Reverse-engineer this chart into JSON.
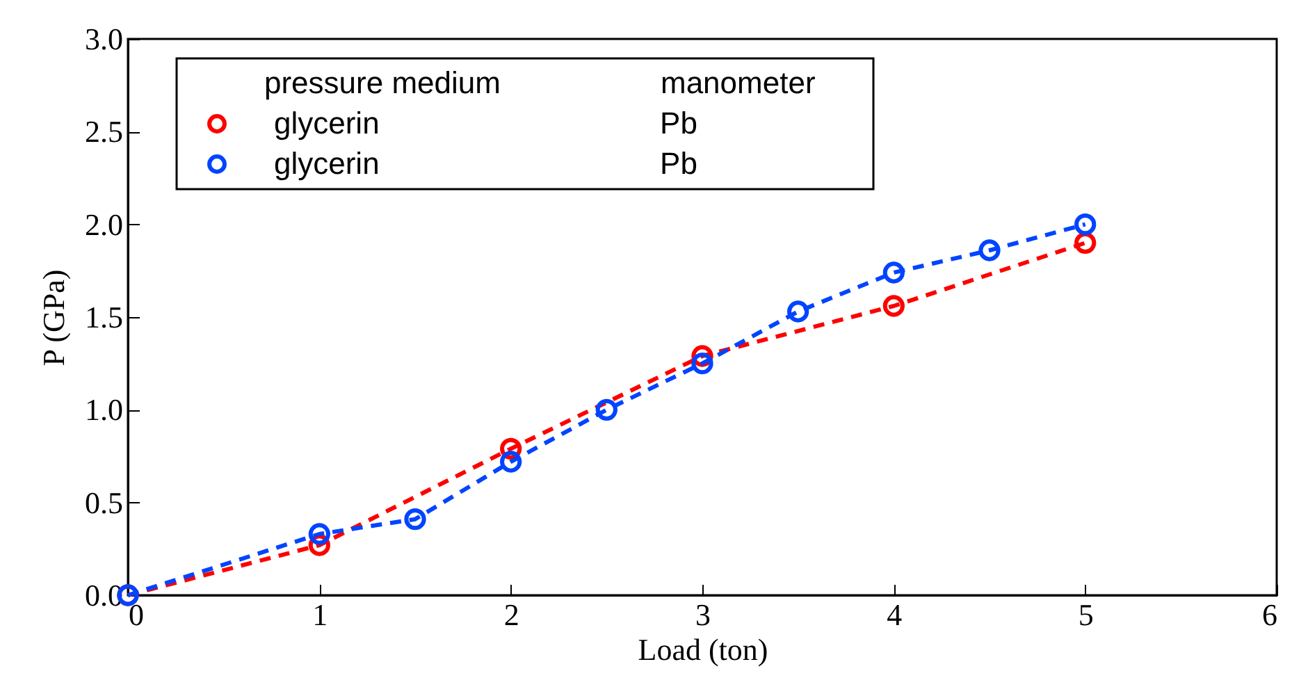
{
  "chart_data": {
    "type": "line",
    "xlabel": "Load (ton)",
    "ylabel": "P (GPa)",
    "legend_title": "pressure medium\tmanometer",
    "legend": "top left",
    "marker": "circle",
    "line_style": "dashed",
    "grid": false,
    "xlim": [
      0,
      6
    ],
    "xticks": [
      0,
      1,
      2,
      3,
      4,
      5,
      6
    ],
    "ylim": [
      0,
      3
    ],
    "yticks": [
      {
        "value": 0,
        "label": "0.0"
      },
      {
        "value": 0.5,
        "label": "0.5"
      },
      {
        "value": 1,
        "label": "1.0"
      },
      {
        "value": 1.5,
        "label": "1.5"
      },
      {
        "value": 2,
        "label": "2.0"
      },
      {
        "value": 2.5,
        "label": "2.5"
      },
      {
        "value": 3,
        "label": "3.0"
      }
    ],
    "series": [
      {
        "name": "glycerin\tPb",
        "color": "#ff0000",
        "x": [
          0,
          1,
          2,
          3,
          4,
          5
        ],
        "values": [
          0,
          0.27,
          0.79,
          1.29,
          1.56,
          1.9
        ]
      },
      {
        "name": "glycerin\tPb",
        "color": "#0044ff",
        "x": [
          0,
          1,
          1.5,
          2,
          2.5,
          3,
          3.5,
          4,
          4.5,
          5
        ],
        "values": [
          0,
          0.33,
          0.41,
          0.72,
          1.0,
          1.25,
          1.53,
          1.74,
          1.86,
          2.0
        ]
      }
    ]
  }
}
